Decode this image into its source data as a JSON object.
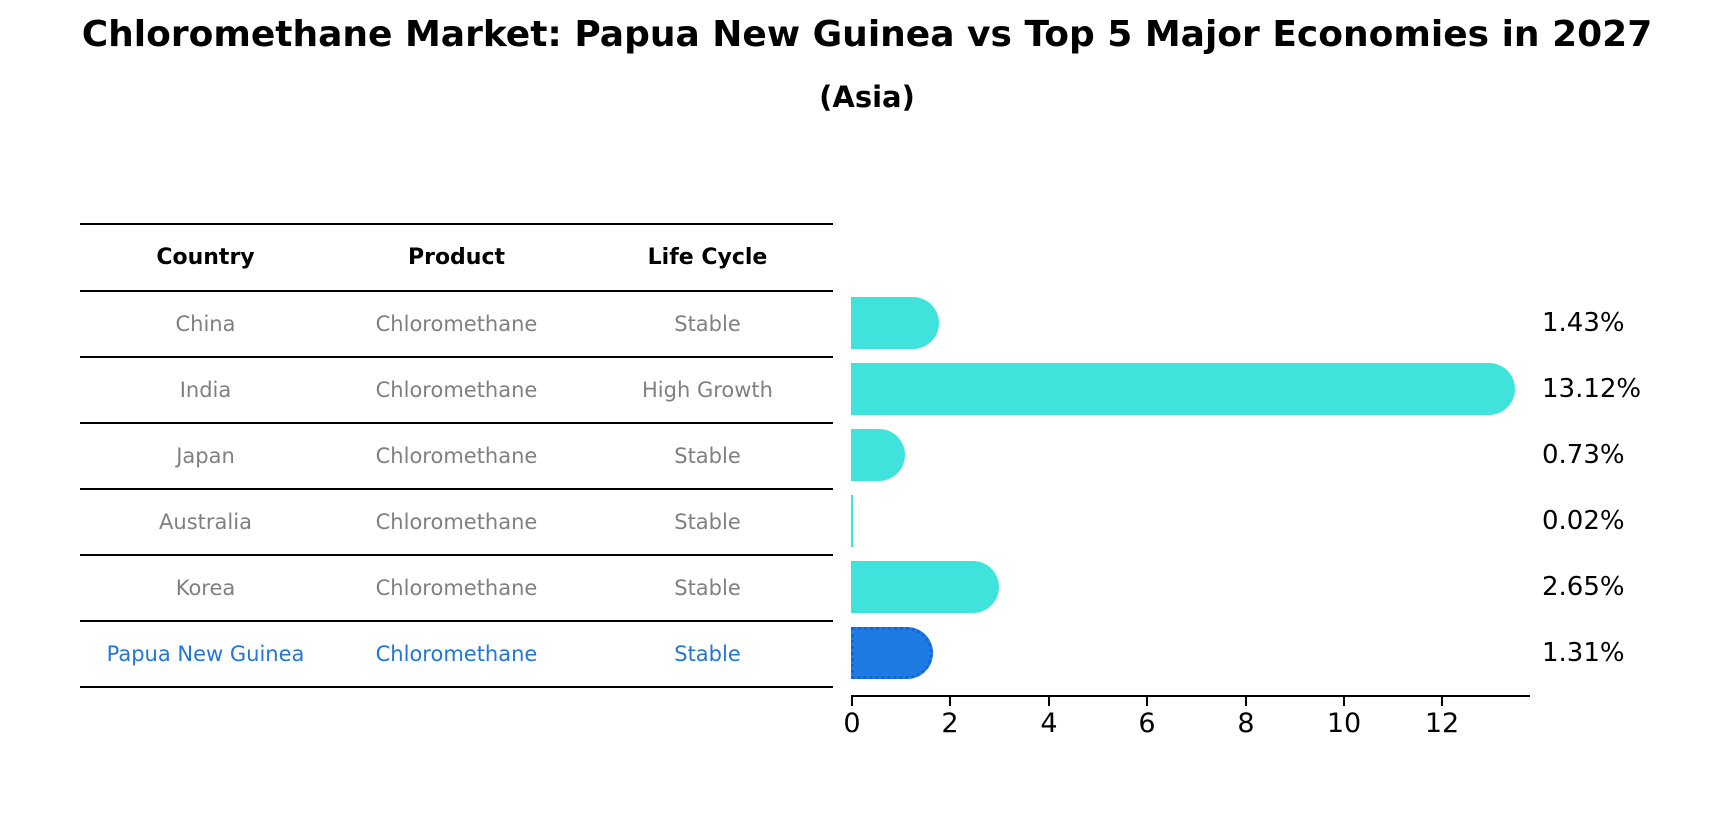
{
  "title": "Chloromethane Market: Papua New Guinea vs Top 5 Major Economies in 2027",
  "subtitle": "(Asia)",
  "table": {
    "headers": [
      "Country",
      "Product",
      "Life Cycle"
    ],
    "rows": [
      {
        "country": "China",
        "product": "Chloromethane",
        "life_cycle": "Stable",
        "highlight": false
      },
      {
        "country": "India",
        "product": "Chloromethane",
        "life_cycle": "High Growth",
        "highlight": false
      },
      {
        "country": "Japan",
        "product": "Chloromethane",
        "life_cycle": "Stable",
        "highlight": false
      },
      {
        "country": "Australia",
        "product": "Chloromethane",
        "life_cycle": "Stable",
        "highlight": false
      },
      {
        "country": "Korea",
        "product": "Chloromethane",
        "life_cycle": "Stable",
        "highlight": false
      },
      {
        "country": "Papua New Guinea",
        "product": "Chloromethane",
        "life_cycle": "Stable",
        "highlight": true
      }
    ]
  },
  "chart_data": {
    "type": "bar",
    "orientation": "horizontal",
    "title": "Chloromethane Market: Papua New Guinea vs Top 5 Major Economies in 2027",
    "subtitle": "(Asia)",
    "categories": [
      "China",
      "India",
      "Japan",
      "Australia",
      "Korea",
      "Papua New Guinea"
    ],
    "values": [
      1.43,
      13.12,
      0.73,
      0.02,
      2.65,
      1.31
    ],
    "value_labels": [
      "1.43%",
      "13.12%",
      "0.73%",
      "0.02%",
      "2.65%",
      "1.31%"
    ],
    "xlabel": "",
    "ylabel": "",
    "x_ticks": [
      0,
      2,
      4,
      6,
      8,
      10,
      12
    ],
    "xlim": [
      0,
      13.8
    ],
    "grid": false,
    "legend": false,
    "highlight_index": 5,
    "colors": {
      "bar": "#40E3DC",
      "highlight_bar": "#1E7BE4",
      "highlight_border": "#1263D8",
      "row_text": "#808080",
      "highlight_text": "#2176D9",
      "axis": "#000000"
    }
  }
}
